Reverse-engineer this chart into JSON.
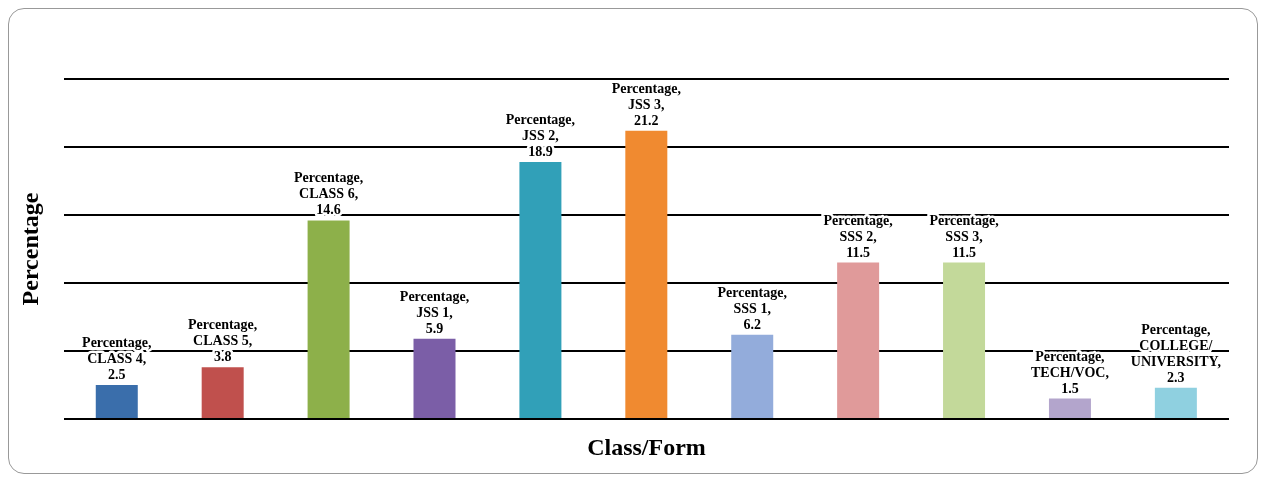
{
  "chart_data": {
    "type": "bar",
    "ylabel": "Percentage",
    "xlabel": "Class/Form",
    "categories": [
      null,
      null,
      null,
      null,
      null,
      null,
      null,
      null,
      null,
      null,
      null
    ],
    "values": [
      2.5,
      3.8,
      14.6,
      5.9,
      18.9,
      21.2,
      6.2,
      11.5,
      11.5,
      1.5,
      2.3
    ],
    "colors": [
      "#3a6eab",
      "#c0504d",
      "#8db04a",
      "#7b5ea7",
      "#31a0b8",
      "#f08a30",
      "#93acdb",
      "#e09a9a",
      "#c3d99a",
      "#b3a5cc",
      "#8fd0e0"
    ],
    "value_labels": [
      "Percentage, CLASS 4, 2.5",
      "Percentage, CLASS 5, 3.8",
      "Percentage, CLASS 6, 14.6",
      "Percentage, JSS 1, 5.9",
      "Percentage, JSS 2, 18.9",
      "Percentage, JSS 3, 21.2",
      "Percentage, SSS 1, 6.2",
      "Percentage, SSS 2, 11.5",
      "Percentage, SSS 3, 11.5",
      "Percentage, TECH/VOC, 1.5",
      "Percentage, COLLEGE/UNIVERSITY, 2.3"
    ],
    "ylim": [
      0,
      25
    ],
    "grid": "y"
  }
}
